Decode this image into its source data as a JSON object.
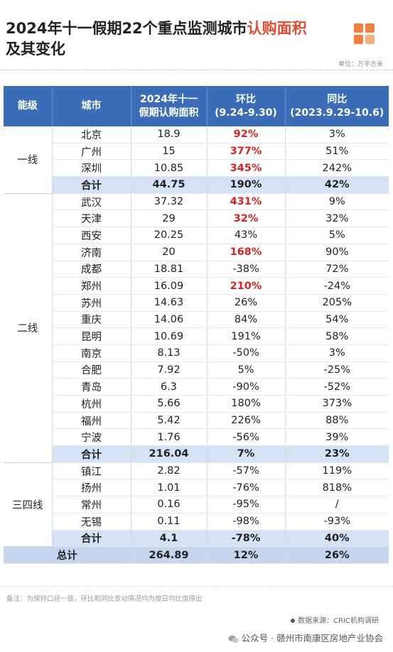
{
  "title": {
    "line1": "2024年十一假期22个重点监测城市",
    "highlight": "认购面积",
    "line2": "及其变化"
  },
  "unit": "单位：万平方米",
  "table": {
    "headers": [
      [
        "能级"
      ],
      [
        "城市"
      ],
      [
        "2024年十一",
        "假期认购面积"
      ],
      [
        "环比",
        "(9.24-9.30)"
      ],
      [
        "同比",
        "(2023.9.29-10.6)"
      ]
    ],
    "groups": [
      {
        "tier": "一线",
        "rows": [
          {
            "city": "北京",
            "area": "18.9",
            "mom": "92%",
            "yoy": "3%",
            "hl": true
          },
          {
            "city": "广州",
            "area": "15",
            "mom": "377%",
            "yoy": "51%",
            "hl": true
          },
          {
            "city": "深圳",
            "area": "10.85",
            "mom": "345%",
            "yoy": "242%",
            "hl": true
          }
        ],
        "subtotal": {
          "city": "合计",
          "area": "44.75",
          "mom": "190%",
          "yoy": "42%"
        }
      },
      {
        "tier": "二线",
        "rows": [
          {
            "city": "武汉",
            "area": "37.32",
            "mom": "431%",
            "yoy": "9%",
            "hl": true
          },
          {
            "city": "天津",
            "area": "29",
            "mom": "32%",
            "yoy": "32%",
            "hl": true
          },
          {
            "city": "西安",
            "area": "20.25",
            "mom": "43%",
            "yoy": "5%"
          },
          {
            "city": "济南",
            "area": "20",
            "mom": "168%",
            "yoy": "90%",
            "hl": true
          },
          {
            "city": "成都",
            "area": "18.81",
            "mom": "-38%",
            "yoy": "72%"
          },
          {
            "city": "郑州",
            "area": "16.09",
            "mom": "210%",
            "yoy": "-24%",
            "hl": true
          },
          {
            "city": "苏州",
            "area": "14.63",
            "mom": "26%",
            "yoy": "205%"
          },
          {
            "city": "重庆",
            "area": "14.06",
            "mom": "84%",
            "yoy": "54%"
          },
          {
            "city": "昆明",
            "area": "10.69",
            "mom": "191%",
            "yoy": "58%"
          },
          {
            "city": "南京",
            "area": "8.13",
            "mom": "-50%",
            "yoy": "3%"
          },
          {
            "city": "合肥",
            "area": "7.92",
            "mom": "5%",
            "yoy": "-25%"
          },
          {
            "city": "青岛",
            "area": "6.3",
            "mom": "-90%",
            "yoy": "-52%"
          },
          {
            "city": "杭州",
            "area": "5.66",
            "mom": "180%",
            "yoy": "373%"
          },
          {
            "city": "福州",
            "area": "5.42",
            "mom": "226%",
            "yoy": "88%"
          },
          {
            "city": "宁波",
            "area": "1.76",
            "mom": "-56%",
            "yoy": "39%"
          }
        ],
        "subtotal": {
          "city": "合计",
          "area": "216.04",
          "mom": "7%",
          "yoy": "23%"
        }
      },
      {
        "tier": "三四线",
        "rows": [
          {
            "city": "镇江",
            "area": "2.82",
            "mom": "-57%",
            "yoy": "119%"
          },
          {
            "city": "扬州",
            "area": "1.01",
            "mom": "-76%",
            "yoy": "818%"
          },
          {
            "city": "常州",
            "area": "0.16",
            "mom": "-95%",
            "yoy": "/"
          },
          {
            "city": "无锡",
            "area": "0.11",
            "mom": "-98%",
            "yoy": "-93%"
          }
        ],
        "subtotal": {
          "city": "合计",
          "area": "4.1",
          "mom": "-78%",
          "yoy": "40%"
        }
      }
    ],
    "total": {
      "label": "总计",
      "area": "264.89",
      "mom": "12%",
      "yoy": "26%"
    }
  },
  "note": "备注：为保持口径一致，环比和同比变动情况均为按日均比值得出",
  "source": "数据来源：CRIC机构调研",
  "wechat": "公众号 · 赣州市南康区房地产业协会",
  "colors": {
    "header": "#3b6cb8",
    "subtotal": "#d5e2f3",
    "total": "#c5d6ee",
    "highlight": "#e02020",
    "title_accent": "#e34a2f",
    "logo": "#f0823c"
  }
}
